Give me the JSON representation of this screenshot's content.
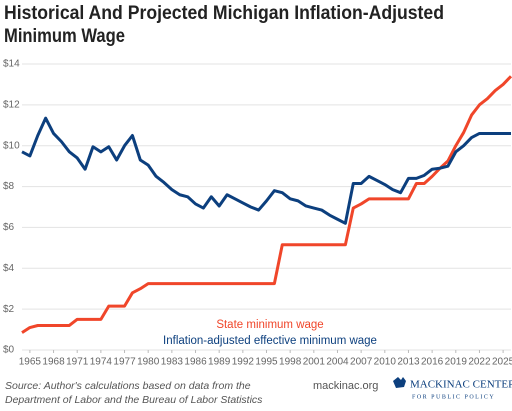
{
  "chart_data": {
    "type": "line",
    "title": [
      "Historical And Projected Michigan Inflation-Adjusted",
      "Minimum Wage"
    ],
    "x": [
      1964,
      1965,
      1966,
      1967,
      1968,
      1969,
      1970,
      1971,
      1972,
      1973,
      1974,
      1975,
      1976,
      1977,
      1978,
      1979,
      1980,
      1981,
      1982,
      1983,
      1984,
      1985,
      1986,
      1987,
      1988,
      1989,
      1990,
      1991,
      1992,
      1993,
      1994,
      1995,
      1996,
      1997,
      1998,
      1999,
      2000,
      2001,
      2002,
      2003,
      2004,
      2005,
      2006,
      2007,
      2008,
      2009,
      2010,
      2011,
      2012,
      2013,
      2014,
      2015,
      2016,
      2017,
      2018,
      2019,
      2020,
      2021,
      2022,
      2023,
      2024,
      2025,
      2026
    ],
    "series": [
      {
        "name": "State minimum wage",
        "color": "#f0462a",
        "values": [
          0.85,
          1.1,
          1.2,
          1.2,
          1.2,
          1.2,
          1.2,
          1.5,
          1.5,
          1.5,
          1.5,
          2.15,
          2.15,
          2.15,
          2.8,
          3.0,
          3.25,
          3.25,
          3.25,
          3.25,
          3.25,
          3.25,
          3.25,
          3.25,
          3.25,
          3.25,
          3.25,
          3.25,
          3.25,
          3.25,
          3.25,
          3.25,
          3.25,
          5.15,
          5.15,
          5.15,
          5.15,
          5.15,
          5.15,
          5.15,
          5.15,
          5.15,
          6.95,
          7.15,
          7.4,
          7.4,
          7.4,
          7.4,
          7.4,
          7.4,
          8.15,
          8.15,
          8.5,
          8.9,
          9.25,
          10.0,
          10.65,
          11.5,
          12.0,
          12.3,
          12.7,
          13.0,
          13.4
        ]
      },
      {
        "name": "Inflation-adjusted effective minimum wage",
        "color": "#0c3f7e",
        "values": [
          9.7,
          9.5,
          10.5,
          11.35,
          10.6,
          10.2,
          9.7,
          9.4,
          8.85,
          9.95,
          9.7,
          9.95,
          9.3,
          10.0,
          10.5,
          9.3,
          9.05,
          8.5,
          8.2,
          7.85,
          7.6,
          7.5,
          7.15,
          6.95,
          7.5,
          7.05,
          7.6,
          7.4,
          7.2,
          7.0,
          6.85,
          7.3,
          7.8,
          7.7,
          7.4,
          7.3,
          7.05,
          6.95,
          6.85,
          6.6,
          6.4,
          6.2,
          8.15,
          8.15,
          8.5,
          8.3,
          8.1,
          7.85,
          7.7,
          8.4,
          8.4,
          8.55,
          8.85,
          8.9,
          9.0,
          9.7,
          10.0,
          10.4,
          10.6,
          10.6,
          10.6,
          10.6,
          10.6
        ]
      }
    ],
    "xlim": [
      1964,
      2026
    ],
    "xticks": [
      1965,
      1968,
      1971,
      1974,
      1977,
      1980,
      1983,
      1986,
      1989,
      1992,
      1995,
      1998,
      2001,
      2004,
      2007,
      2010,
      2013,
      2016,
      2019,
      2022,
      2025
    ],
    "ylim": [
      0,
      14
    ],
    "yticks": [
      {
        "value": 0,
        "label": "$0"
      },
      {
        "value": 2,
        "label": "$2"
      },
      {
        "value": 4,
        "label": "$4"
      },
      {
        "value": 6,
        "label": "$6"
      },
      {
        "value": 8,
        "label": "$8"
      },
      {
        "value": 10,
        "label": "$10"
      },
      {
        "value": 12,
        "label": "$12"
      },
      {
        "value": 14,
        "label": "$14"
      }
    ],
    "grid": true,
    "source": [
      "Source: Author's calculations based on data from the",
      "Department of Labor and the Bureau of Labor Statistics"
    ],
    "website": "mackinac.org",
    "logo": [
      "MACKINAC CENTER",
      "FOR PUBLIC POLICY"
    ]
  }
}
